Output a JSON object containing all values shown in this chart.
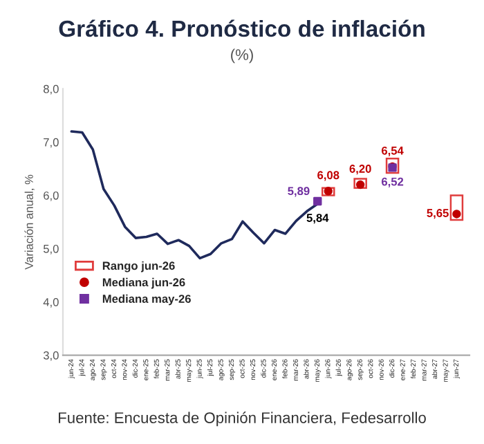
{
  "chart_data": {
    "type": "line",
    "title": "Gráfico 4. Pronóstico de inflación",
    "subtitle": "(%)",
    "ylabel": "Variación anual, %",
    "categories": [
      "jun-24",
      "jul-24",
      "ago-24",
      "sep-24",
      "oct-24",
      "nov-24",
      "dic-24",
      "ene-25",
      "feb-25",
      "mar-25",
      "abr-25",
      "may-25",
      "jun-25",
      "jul-25",
      "ago-25",
      "sep-25",
      "oct-25",
      "nov-25",
      "dic-25",
      "ene-26",
      "feb-26",
      "mar-26",
      "abr-26",
      "may-26",
      "jun-26",
      "jul-26",
      "ago-26",
      "sep-26",
      "oct-26",
      "nov-26",
      "dic-26",
      "ene-27",
      "feb-27",
      "mar-27",
      "abr-27",
      "may-27",
      "jun-27"
    ],
    "series": [
      {
        "color": "#1f2a5c",
        "values": [
          7.2,
          7.18,
          6.86,
          6.12,
          5.81,
          5.41,
          5.2,
          5.22,
          5.28,
          5.09,
          5.16,
          5.05,
          4.82,
          4.9,
          5.1,
          5.18,
          5.51,
          5.3,
          5.1,
          5.35,
          5.28,
          5.52,
          5.7,
          5.84,
          null,
          null,
          null,
          null,
          null,
          null,
          null,
          null,
          null,
          null,
          null,
          null,
          null
        ],
        "value_labels": [
          null,
          null,
          null,
          null,
          null,
          null,
          null,
          null,
          null,
          null,
          null,
          null,
          null,
          null,
          null,
          null,
          null,
          null,
          null,
          null,
          null,
          null,
          null,
          "5,84",
          null,
          null,
          null,
          null,
          null,
          null,
          null,
          null,
          null,
          null,
          null,
          null,
          null
        ]
      },
      {
        "type": "bar",
        "name": "Rango jun-26",
        "color": "#e03c3c",
        "base": [
          null,
          null,
          null,
          null,
          null,
          null,
          null,
          null,
          null,
          null,
          null,
          null,
          null,
          null,
          null,
          null,
          null,
          null,
          null,
          null,
          null,
          null,
          null,
          null,
          6.0,
          null,
          null,
          6.14,
          null,
          null,
          6.42,
          null,
          null,
          null,
          null,
          null,
          5.54
        ],
        "values": [
          null,
          null,
          null,
          null,
          null,
          null,
          null,
          null,
          null,
          null,
          null,
          null,
          null,
          null,
          null,
          null,
          null,
          null,
          null,
          null,
          null,
          null,
          null,
          null,
          0.14,
          null,
          null,
          0.17,
          null,
          null,
          0.27,
          null,
          null,
          null,
          null,
          null,
          0.46
        ]
      },
      {
        "type": "scatter",
        "name": "Mediana jun-26",
        "color": "#c00000",
        "marker": "circle",
        "values": [
          null,
          null,
          null,
          null,
          null,
          null,
          null,
          null,
          null,
          null,
          null,
          null,
          null,
          null,
          null,
          null,
          null,
          null,
          null,
          null,
          null,
          null,
          null,
          null,
          6.08,
          null,
          null,
          6.2,
          null,
          null,
          6.54,
          null,
          null,
          null,
          null,
          null,
          5.65
        ],
        "value_labels": [
          null,
          null,
          null,
          null,
          null,
          null,
          null,
          null,
          null,
          null,
          null,
          null,
          null,
          null,
          null,
          null,
          null,
          null,
          null,
          null,
          null,
          null,
          null,
          null,
          "6,08",
          null,
          null,
          "6,20",
          null,
          null,
          "6,54",
          null,
          null,
          null,
          null,
          null,
          "5,65"
        ]
      },
      {
        "type": "scatter",
        "name": "Mediana may-26",
        "color": "#7030a0",
        "marker": "square",
        "values": [
          null,
          null,
          null,
          null,
          null,
          null,
          null,
          null,
          null,
          null,
          null,
          null,
          null,
          null,
          null,
          null,
          null,
          null,
          null,
          null,
          null,
          null,
          null,
          5.89,
          null,
          null,
          null,
          null,
          null,
          null,
          6.52,
          null,
          null,
          null,
          null,
          null,
          null
        ],
        "value_labels": [
          null,
          null,
          null,
          null,
          null,
          null,
          null,
          null,
          null,
          null,
          null,
          null,
          null,
          null,
          null,
          null,
          null,
          null,
          null,
          null,
          null,
          null,
          null,
          "5,89",
          null,
          null,
          null,
          null,
          null,
          null,
          "6,52",
          null,
          null,
          null,
          null,
          null,
          null
        ]
      }
    ],
    "ylim": [
      3.0,
      8.0
    ],
    "yticks": [
      {
        "value": 3.0,
        "label": "3,0"
      },
      {
        "value": 4.0,
        "label": "4,0"
      },
      {
        "value": 5.0,
        "label": "5,0"
      },
      {
        "value": 6.0,
        "label": "6,0"
      },
      {
        "value": 7.0,
        "label": "7,0"
      },
      {
        "value": 8.0,
        "label": "8,0"
      }
    ],
    "grid": false,
    "legend": "center left",
    "annotations": [
      "Fuente: Encuesta de Opinión Financiera, Fedesarrollo"
    ]
  }
}
